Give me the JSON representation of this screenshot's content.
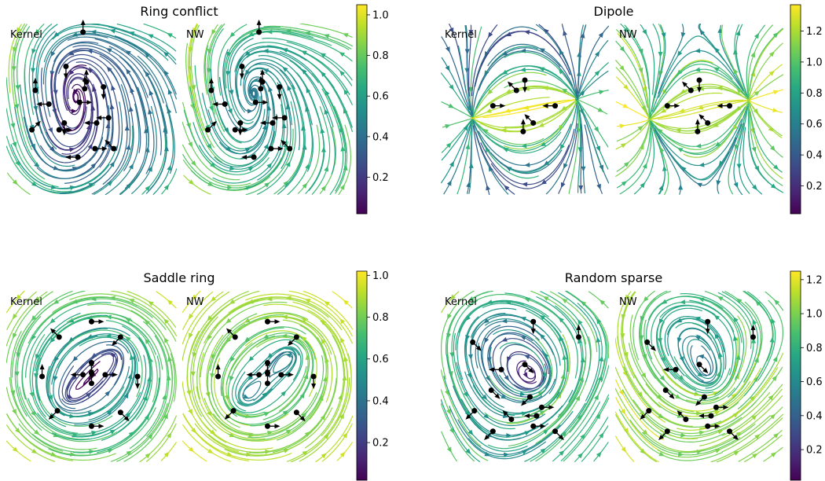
{
  "colormap": "viridis",
  "chart_data": [
    {
      "type": "streamplot",
      "title": "Ring conflict",
      "panels": [
        "Kernel",
        "NW"
      ],
      "colorbar": {
        "ticks": [
          0.2,
          0.4,
          0.6,
          0.8,
          1.0
        ],
        "tick_labels": [
          "0.2",
          "0.4",
          "0.6",
          "0.8",
          "1.0"
        ],
        "range": [
          0.02,
          1.05
        ]
      },
      "field": {
        "kind": "vortex",
        "direction": "ccw"
      },
      "samples": [
        [
          0.35,
          0.25,
          0,
          1
        ],
        [
          0.45,
          0.05,
          0,
          -1
        ],
        [
          0.53,
          0.58,
          -1,
          0
        ],
        [
          0.31,
          0.62,
          1,
          0
        ],
        [
          0.47,
          0.34,
          0,
          -1
        ],
        [
          0.25,
          0.47,
          -1,
          0
        ],
        [
          0.43,
          0.46,
          1,
          0
        ],
        [
          0.57,
          0.37,
          0,
          1
        ],
        [
          0.6,
          0.55,
          -1,
          0
        ],
        [
          0.34,
          0.58,
          0,
          1
        ],
        [
          0.15,
          0.62,
          1,
          -1
        ],
        [
          0.17,
          0.39,
          0,
          -1
        ],
        [
          0.42,
          0.78,
          -1,
          0
        ],
        [
          0.52,
          0.73,
          1,
          0
        ],
        [
          0.63,
          0.73,
          -1,
          -1
        ],
        [
          0.46,
          0.38,
          0,
          -1
        ]
      ]
    },
    {
      "type": "streamplot",
      "title": "Dipole",
      "panels": [
        "Kernel",
        "NW"
      ],
      "colorbar": {
        "ticks": [
          0.2,
          0.4,
          0.6,
          0.8,
          1.0,
          1.2
        ],
        "tick_labels": [
          "0.2",
          "0.4",
          "0.6",
          "0.8",
          "1.0",
          "1.2"
        ],
        "range": [
          0.02,
          1.37
        ]
      },
      "field": {
        "kind": "dipole"
      },
      "samples": [
        [
          0.5,
          0.33,
          0,
          1
        ],
        [
          0.45,
          0.39,
          -1,
          -1
        ],
        [
          0.31,
          0.48,
          1,
          0
        ],
        [
          0.68,
          0.48,
          -1,
          0
        ],
        [
          0.49,
          0.63,
          0,
          -1
        ],
        [
          0.55,
          0.58,
          -1,
          -1
        ]
      ]
    },
    {
      "type": "streamplot",
      "title": "Saddle ring",
      "panels": [
        "Kernel",
        "NW"
      ],
      "colorbar": {
        "ticks": [
          0.2,
          0.4,
          0.6,
          0.8,
          1.0
        ],
        "tick_labels": [
          "0.2",
          "0.4",
          "0.6",
          "0.8",
          "1.0"
        ],
        "range": [
          0.02,
          1.02
        ]
      },
      "field": {
        "kind": "saddle-ring"
      },
      "samples": [
        [
          0.5,
          0.18,
          1,
          0
        ],
        [
          0.31,
          0.27,
          -1,
          -1
        ],
        [
          0.67,
          0.27,
          -1,
          1
        ],
        [
          0.5,
          0.42,
          0,
          1
        ],
        [
          0.5,
          0.48,
          0,
          -1
        ],
        [
          0.45,
          0.49,
          -1,
          0
        ],
        [
          0.58,
          0.49,
          1,
          0
        ],
        [
          0.5,
          0.54,
          0,
          -1
        ],
        [
          0.21,
          0.5,
          0,
          -1
        ],
        [
          0.77,
          0.5,
          0,
          1
        ],
        [
          0.3,
          0.7,
          -1,
          1
        ],
        [
          0.67,
          0.71,
          1,
          1
        ],
        [
          0.5,
          0.79,
          1,
          0
        ]
      ]
    },
    {
      "type": "streamplot",
      "title": "Random sparse",
      "panels": [
        "Kernel",
        "NW"
      ],
      "colorbar": {
        "ticks": [
          0.2,
          0.4,
          0.6,
          0.8,
          1.0,
          1.2
        ],
        "tick_labels": [
          "0.2",
          "0.4",
          "0.6",
          "0.8",
          "1.0",
          "1.2"
        ],
        "range": [
          0.02,
          1.25
        ]
      },
      "field": {
        "kind": "random-swirl"
      },
      "samples": [
        [
          0.55,
          0.18,
          0,
          1
        ],
        [
          0.82,
          0.27,
          0,
          -1
        ],
        [
          0.36,
          0.46,
          -1,
          0
        ],
        [
          0.5,
          0.43,
          1,
          1
        ],
        [
          0.3,
          0.58,
          1,
          1
        ],
        [
          0.53,
          0.62,
          -1,
          1
        ],
        [
          0.2,
          0.7,
          -1,
          1
        ],
        [
          0.6,
          0.68,
          1,
          0
        ],
        [
          0.42,
          0.75,
          -1,
          -1
        ],
        [
          0.55,
          0.79,
          1,
          0
        ],
        [
          0.31,
          0.82,
          -1,
          1
        ],
        [
          0.68,
          0.82,
          1,
          1
        ],
        [
          0.57,
          0.73,
          -1,
          0
        ],
        [
          0.19,
          0.3,
          1,
          1
        ]
      ]
    }
  ]
}
